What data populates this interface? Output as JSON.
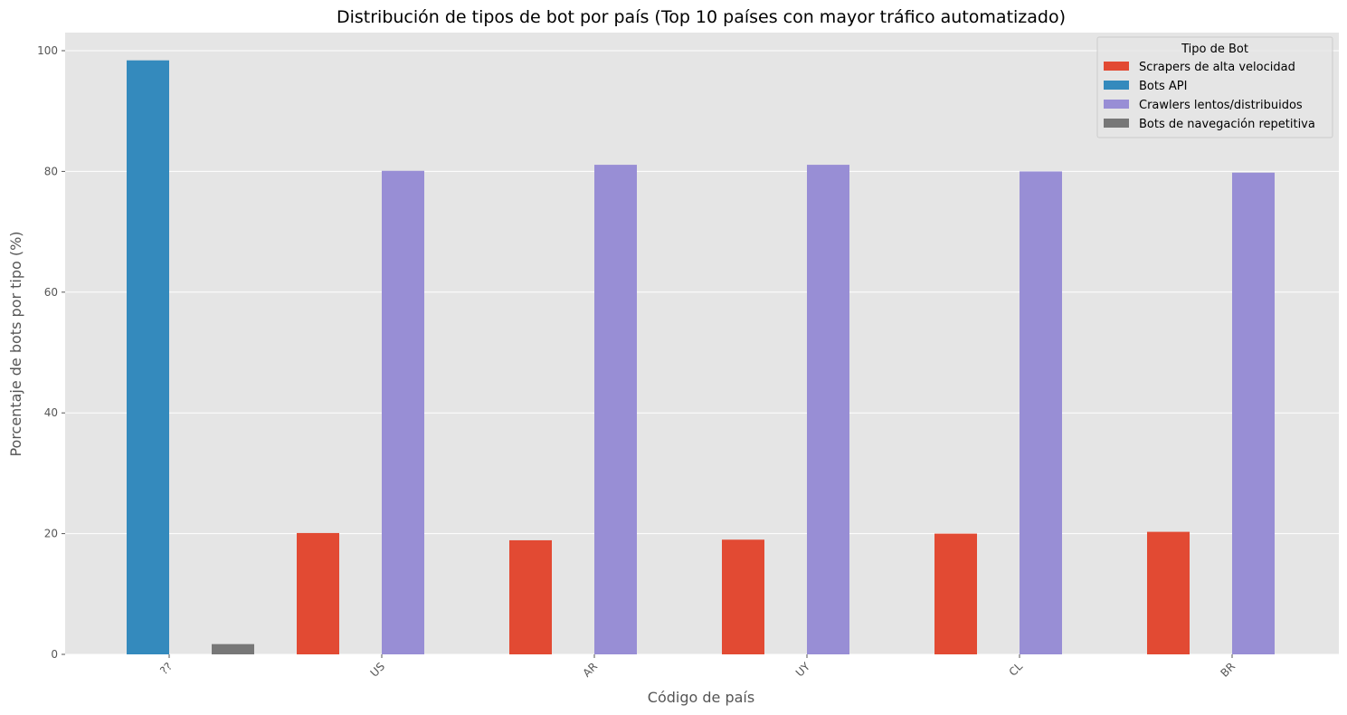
{
  "chart_data": {
    "type": "bar",
    "title": "Distribución de tipos de bot por país (Top 10 países con mayor tráfico automatizado)",
    "xlabel": "Código de país",
    "ylabel": "Porcentaje de bots por tipo (%)",
    "categories": [
      "??",
      "US",
      "AR",
      "UY",
      "CL",
      "BR"
    ],
    "ylim": [
      0,
      103
    ],
    "yticks": [
      0,
      20,
      40,
      60,
      80,
      100
    ],
    "grid": true,
    "legend_title": "Tipo de Bot",
    "legend_position": "top-right",
    "series": [
      {
        "name": "Scrapers de alta velocidad",
        "color": "#E24A33",
        "values": [
          0,
          20.1,
          18.9,
          19.0,
          20.0,
          20.3
        ]
      },
      {
        "name": "Bots API",
        "color": "#348ABD",
        "values": [
          98.4,
          0,
          0,
          0,
          0,
          0
        ]
      },
      {
        "name": "Crawlers lentos/distribuidos",
        "color": "#988ED5",
        "values": [
          0,
          80.1,
          81.1,
          81.1,
          80.0,
          79.8
        ]
      },
      {
        "name": "Bots de navegación repetitiva",
        "color": "#777777",
        "values": [
          1.7,
          0,
          0,
          0,
          0,
          0
        ]
      }
    ]
  }
}
